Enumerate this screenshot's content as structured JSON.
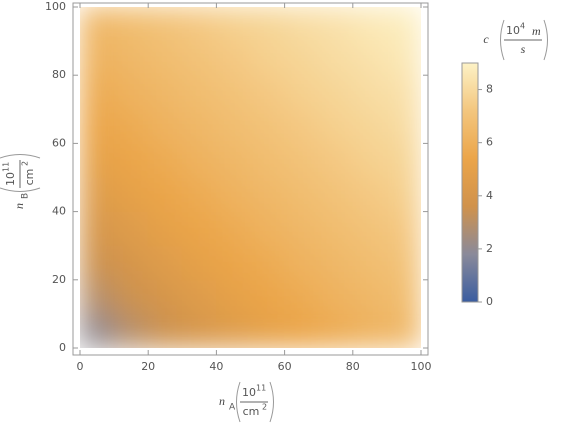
{
  "chart_data": {
    "type": "heatmap",
    "x_label": {
      "symbol": "n",
      "subscript": "A",
      "numerator": "10",
      "numerator_exp": "11",
      "denominator": "cm",
      "denominator_exp": "2"
    },
    "y_label": {
      "symbol": "n",
      "subscript": "B",
      "numerator": "10",
      "numerator_exp": "11",
      "denominator": "cm",
      "denominator_exp": "2"
    },
    "colorbar_label": {
      "symbol": "c",
      "numerator": "10",
      "numerator_exp": "4",
      "numerator_unit": "m",
      "denominator": "s"
    },
    "x": [
      5,
      15,
      25,
      35,
      45,
      55,
      65,
      75,
      85,
      95
    ],
    "y": [
      5,
      15,
      25,
      35,
      45,
      55,
      65,
      75,
      85,
      95
    ],
    "z": [
      [
        2.0,
        2.9,
        3.5,
        4.0,
        4.5,
        5.0,
        5.4,
        5.7,
        6.1,
        6.4
      ],
      [
        2.9,
        3.5,
        4.0,
        4.5,
        5.0,
        5.4,
        5.7,
        6.1,
        6.4,
        6.7
      ],
      [
        3.5,
        4.0,
        4.5,
        5.0,
        5.4,
        5.7,
        6.1,
        6.4,
        6.7,
        7.0
      ],
      [
        4.0,
        4.5,
        5.0,
        5.4,
        5.7,
        6.1,
        6.4,
        6.7,
        7.0,
        7.3
      ],
      [
        4.5,
        5.0,
        5.4,
        5.7,
        6.1,
        6.4,
        6.7,
        7.0,
        7.3,
        7.6
      ],
      [
        5.0,
        5.4,
        5.7,
        6.1,
        6.4,
        6.7,
        7.0,
        7.3,
        7.6,
        7.8
      ],
      [
        5.4,
        5.7,
        6.1,
        6.4,
        6.7,
        7.0,
        7.3,
        7.6,
        7.8,
        8.1
      ],
      [
        5.7,
        6.1,
        6.4,
        6.7,
        7.0,
        7.3,
        7.6,
        7.8,
        8.1,
        8.3
      ],
      [
        6.1,
        6.4,
        6.7,
        7.0,
        7.3,
        7.6,
        7.8,
        8.1,
        8.3,
        8.6
      ],
      [
        6.4,
        6.7,
        7.0,
        7.3,
        7.6,
        7.8,
        8.1,
        8.3,
        8.6,
        8.8
      ]
    ],
    "xlim": [
      0,
      100
    ],
    "ylim": [
      0,
      100
    ],
    "xticks": [
      0,
      20,
      40,
      60,
      80,
      100
    ],
    "yticks": [
      0,
      20,
      40,
      60,
      80,
      100
    ],
    "zlim": [
      0,
      9
    ],
    "zticks": [
      0,
      2,
      4,
      6,
      8
    ],
    "colorscale": [
      "#3a5da0",
      "#8a8a9a",
      "#d0924c",
      "#eba54a",
      "#f3c67e",
      "#fdf2c6"
    ]
  }
}
